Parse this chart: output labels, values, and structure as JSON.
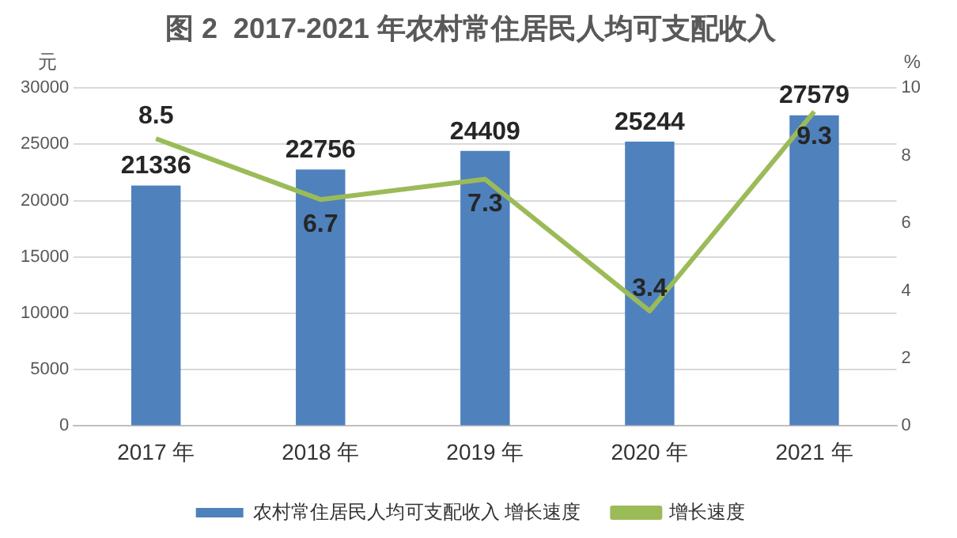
{
  "chart_data": {
    "type": "bar",
    "title": "图 2  2017-2021 年农村常住居民人均可支配收入",
    "categories": [
      "2017 年",
      "2018 年",
      "2019 年",
      "2020 年",
      "2021 年"
    ],
    "series": [
      {
        "name": "农村常住居民人均可支配收入 增长速度",
        "color": "#4f81bd",
        "values": [
          21336,
          22756,
          24409,
          25244,
          27579
        ]
      },
      {
        "name": "增长速度",
        "type": "line",
        "axis": "y2",
        "color": "#9bbb59",
        "marker": "none",
        "values": [
          8.5,
          6.7,
          7.3,
          3.4,
          9.3
        ]
      }
    ],
    "ylabel": "元",
    "y2label": "%",
    "ylim": [
      0,
      30000
    ],
    "yticks": [
      0,
      5000,
      10000,
      15000,
      20000,
      25000,
      30000
    ],
    "y2lim": [
      0,
      10
    ],
    "y2ticks": [
      0,
      2,
      4,
      6,
      8,
      10
    ],
    "grid": "y",
    "legend": "bottom",
    "data_labels": true
  }
}
